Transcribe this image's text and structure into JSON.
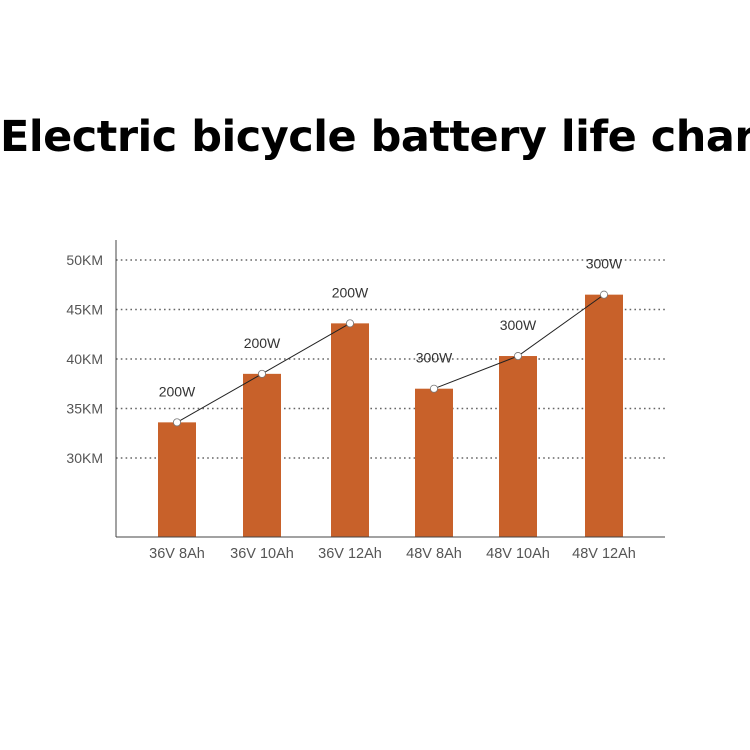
{
  "chart_data": {
    "type": "bar",
    "title": "Electric bicycle battery life chart",
    "categories": [
      "36V 8Ah",
      "36V 10Ah",
      "36V 12Ah",
      "48V 8Ah",
      "48V 10Ah",
      "48V 12Ah"
    ],
    "values": [
      33.6,
      38.5,
      43.6,
      37.0,
      40.3,
      46.5
    ],
    "value_labels": [
      "200W",
      "200W",
      "200W",
      "300W",
      "300W",
      "300W"
    ],
    "y_ticks": [
      30,
      35,
      40,
      45,
      50
    ],
    "y_tick_labels": [
      "30KM",
      "35KM",
      "40KM",
      "45KM",
      "50KM"
    ],
    "ylim": [
      22,
      51
    ],
    "grid": "horizontal dotted",
    "connector_groups": [
      [
        0,
        1,
        2
      ],
      [
        3,
        4,
        5
      ]
    ],
    "colors": {
      "bar": "#C8612A",
      "grid": "#666666",
      "axis": "#444444",
      "line": "#222222"
    }
  }
}
